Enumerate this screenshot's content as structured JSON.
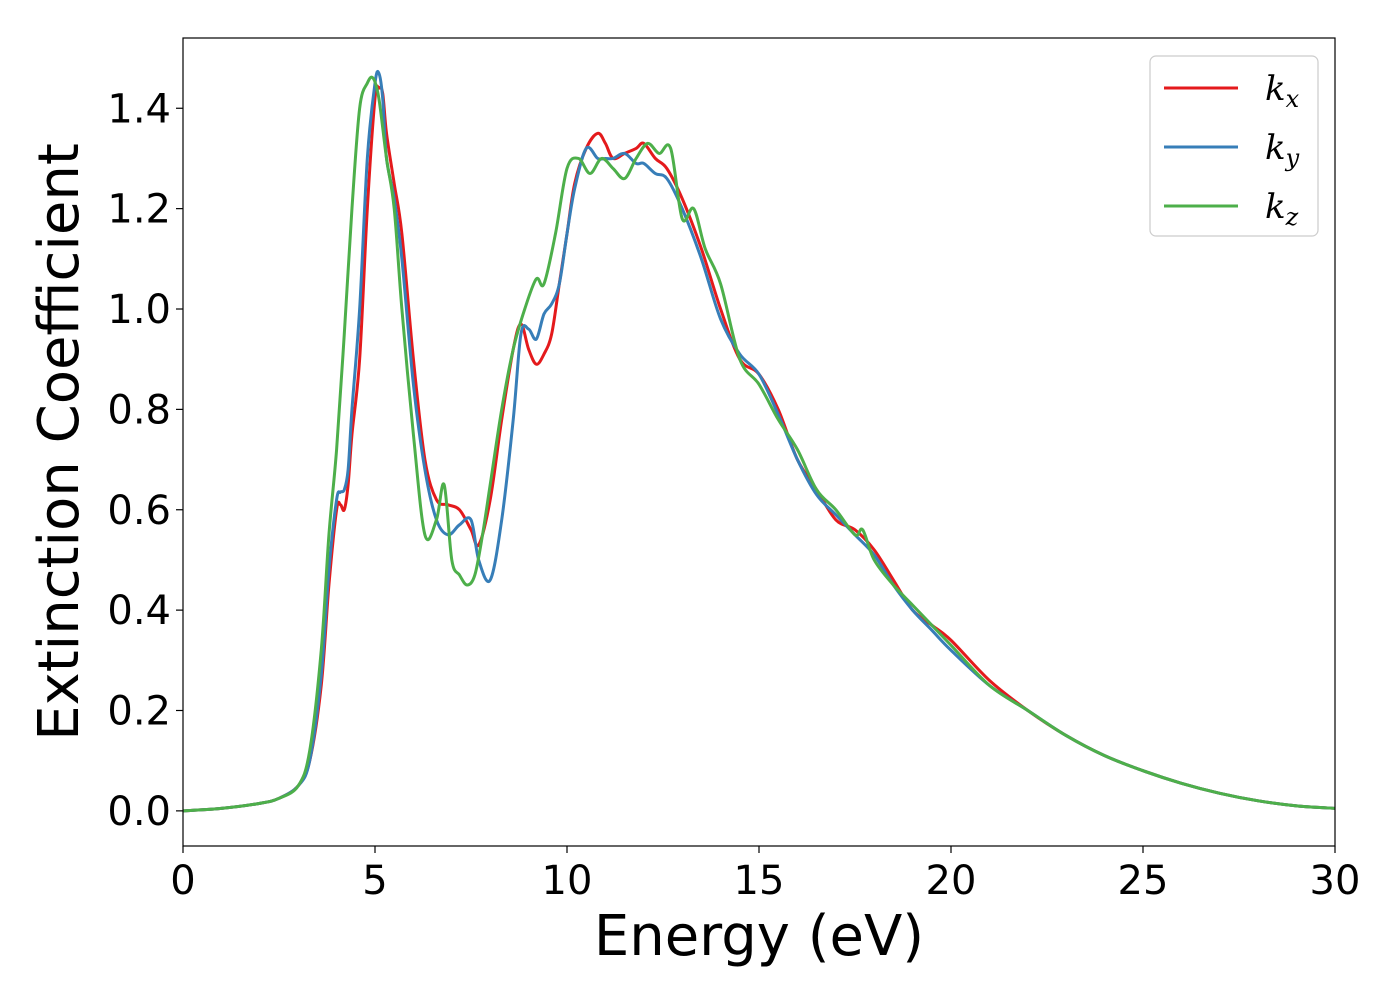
{
  "chart_data": {
    "type": "line",
    "xlabel": "Energy (eV)",
    "ylabel": "Extinction Coefficient",
    "xlim": [
      0,
      30
    ],
    "ylim": [
      -0.07,
      1.54
    ],
    "xticks": [
      0,
      5,
      10,
      15,
      20,
      25,
      30
    ],
    "yticks": [
      0.0,
      0.2,
      0.4,
      0.6,
      0.8,
      1.0,
      1.2,
      1.4
    ],
    "grid": false,
    "legend_position": "top-right",
    "series": [
      {
        "name": "k",
        "subscript": "x",
        "color": "#e41a1c",
        "x": [
          0,
          1,
          2,
          2.5,
          3,
          3.3,
          3.6,
          3.8,
          4.0,
          4.1,
          4.2,
          4.3,
          4.4,
          4.6,
          4.8,
          5.0,
          5.1,
          5.2,
          5.3,
          5.5,
          5.7,
          6.0,
          6.3,
          6.6,
          6.9,
          7.2,
          7.5,
          7.7,
          8.0,
          8.3,
          8.6,
          8.8,
          9.0,
          9.2,
          9.4,
          9.6,
          9.8,
          10.0,
          10.2,
          10.5,
          10.8,
          11.0,
          11.2,
          11.5,
          11.8,
          12.0,
          12.3,
          12.6,
          13.0,
          13.5,
          14.0,
          14.5,
          15.0,
          15.5,
          16.0,
          16.5,
          17.0,
          17.5,
          18.0,
          18.5,
          19.0,
          19.5,
          20.0,
          21.0,
          22.0,
          23.0,
          24.0,
          25.0,
          26.0,
          27.0,
          28.0,
          29.0,
          30.0
        ],
        "values": [
          0.0,
          0.005,
          0.015,
          0.025,
          0.05,
          0.1,
          0.25,
          0.45,
          0.6,
          0.61,
          0.6,
          0.65,
          0.75,
          0.9,
          1.2,
          1.42,
          1.44,
          1.43,
          1.35,
          1.25,
          1.15,
          0.9,
          0.7,
          0.62,
          0.61,
          0.6,
          0.56,
          0.53,
          0.62,
          0.78,
          0.92,
          0.97,
          0.92,
          0.89,
          0.91,
          0.95,
          1.05,
          1.15,
          1.25,
          1.32,
          1.35,
          1.33,
          1.3,
          1.31,
          1.32,
          1.33,
          1.3,
          1.28,
          1.22,
          1.12,
          1.0,
          0.9,
          0.87,
          0.8,
          0.7,
          0.64,
          0.58,
          0.56,
          0.52,
          0.46,
          0.4,
          0.37,
          0.34,
          0.26,
          0.2,
          0.15,
          0.11,
          0.08,
          0.055,
          0.035,
          0.02,
          0.01,
          0.005
        ]
      },
      {
        "name": "k",
        "subscript": "y",
        "color": "#377eb8",
        "x": [
          0,
          1,
          2,
          2.5,
          3,
          3.3,
          3.6,
          3.8,
          4.0,
          4.1,
          4.2,
          4.3,
          4.4,
          4.6,
          4.8,
          5.0,
          5.1,
          5.2,
          5.3,
          5.5,
          5.7,
          6.0,
          6.3,
          6.6,
          6.9,
          7.2,
          7.5,
          7.7,
          8.0,
          8.3,
          8.6,
          8.8,
          9.0,
          9.2,
          9.4,
          9.6,
          9.8,
          10.0,
          10.2,
          10.5,
          10.8,
          11.0,
          11.2,
          11.5,
          11.8,
          12.0,
          12.3,
          12.6,
          13.0,
          13.5,
          14.0,
          14.5,
          15.0,
          15.5,
          16.0,
          16.5,
          17.0,
          17.5,
          18.0,
          18.5,
          19.0,
          19.5,
          20.0,
          21.0,
          22.0,
          23.0,
          24.0,
          25.0,
          26.0,
          27.0,
          28.0,
          29.0,
          30.0
        ],
        "values": [
          0.0,
          0.005,
          0.015,
          0.025,
          0.05,
          0.1,
          0.27,
          0.48,
          0.62,
          0.635,
          0.64,
          0.68,
          0.8,
          1.0,
          1.3,
          1.45,
          1.47,
          1.42,
          1.3,
          1.22,
          1.1,
          0.85,
          0.68,
          0.58,
          0.55,
          0.57,
          0.58,
          0.5,
          0.46,
          0.58,
          0.78,
          0.95,
          0.96,
          0.94,
          0.99,
          1.01,
          1.05,
          1.15,
          1.24,
          1.32,
          1.3,
          1.3,
          1.3,
          1.31,
          1.29,
          1.29,
          1.27,
          1.26,
          1.2,
          1.1,
          0.98,
          0.91,
          0.87,
          0.79,
          0.7,
          0.63,
          0.59,
          0.55,
          0.51,
          0.45,
          0.4,
          0.36,
          0.32,
          0.25,
          0.2,
          0.15,
          0.11,
          0.08,
          0.055,
          0.035,
          0.02,
          0.01,
          0.005
        ]
      },
      {
        "name": "k",
        "subscript": "z",
        "color": "#4daf4a",
        "x": [
          0,
          1,
          2,
          2.5,
          3,
          3.3,
          3.6,
          3.8,
          4.0,
          4.2,
          4.4,
          4.6,
          4.8,
          4.95,
          5.1,
          5.3,
          5.5,
          5.7,
          6.0,
          6.3,
          6.6,
          6.8,
          7.0,
          7.2,
          7.4,
          7.6,
          7.8,
          8.0,
          8.3,
          8.6,
          8.9,
          9.2,
          9.4,
          9.7,
          10.0,
          10.3,
          10.6,
          10.9,
          11.2,
          11.5,
          11.8,
          12.1,
          12.4,
          12.7,
          13.0,
          13.3,
          13.6,
          14.0,
          14.5,
          15.0,
          15.5,
          16.0,
          16.5,
          17.0,
          17.5,
          17.7,
          18.0,
          18.5,
          19.0,
          19.5,
          20.0,
          21.0,
          22.0,
          23.0,
          24.0,
          25.0,
          26.0,
          27.0,
          28.0,
          29.0,
          30.0
        ],
        "values": [
          0.0,
          0.005,
          0.015,
          0.025,
          0.05,
          0.12,
          0.32,
          0.55,
          0.72,
          0.95,
          1.2,
          1.4,
          1.45,
          1.46,
          1.42,
          1.3,
          1.2,
          1.0,
          0.75,
          0.55,
          0.58,
          0.65,
          0.5,
          0.47,
          0.45,
          0.47,
          0.55,
          0.65,
          0.8,
          0.92,
          1.0,
          1.06,
          1.05,
          1.15,
          1.28,
          1.3,
          1.27,
          1.3,
          1.28,
          1.26,
          1.3,
          1.33,
          1.31,
          1.32,
          1.18,
          1.2,
          1.12,
          1.05,
          0.9,
          0.85,
          0.78,
          0.72,
          0.64,
          0.6,
          0.55,
          0.56,
          0.5,
          0.45,
          0.41,
          0.37,
          0.33,
          0.25,
          0.2,
          0.15,
          0.11,
          0.08,
          0.055,
          0.035,
          0.02,
          0.01,
          0.005
        ]
      }
    ]
  }
}
